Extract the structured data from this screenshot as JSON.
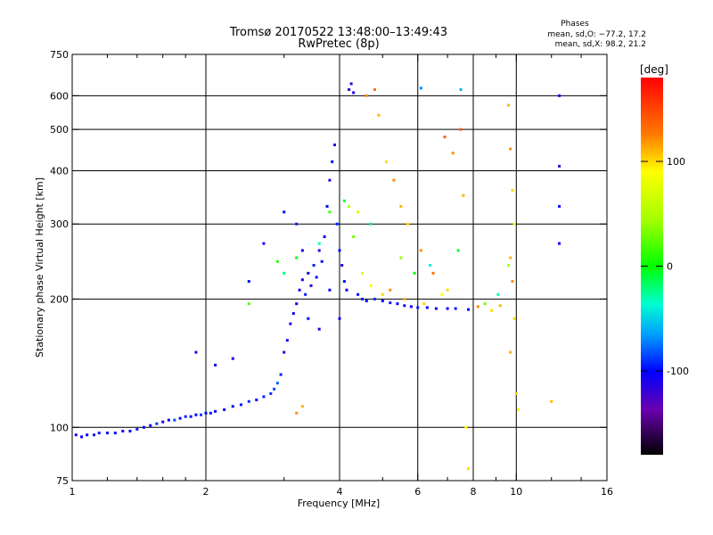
{
  "chart_data": {
    "type": "scatter",
    "title": "Tromsø 20170522 13:48:00–13:49:43",
    "subtitle": "RwPretec (8p)",
    "xlabel": "Frequency [MHz]",
    "ylabel": "Stationary phase Virtual Height [km]",
    "x_scale": "log",
    "y_scale": "log",
    "xlim": [
      1,
      16
    ],
    "ylim": [
      75,
      750
    ],
    "x_ticks": [
      1,
      2,
      4,
      6,
      8,
      10,
      16
    ],
    "x_minor_ticks": [
      1.2,
      1.4,
      1.6,
      1.8,
      3,
      5,
      7,
      9,
      12,
      14
    ],
    "y_ticks": [
      75,
      100,
      200,
      300,
      400,
      500,
      600,
      750
    ],
    "grid_x": [
      2,
      4,
      6,
      8,
      10
    ],
    "grid_y": [
      100,
      200,
      300,
      400,
      500,
      600
    ],
    "phases_legend": {
      "title": "Phases",
      "line_o": "mean, sd,O: −77.2, 17.2",
      "line_x": "mean, sd,X:  98.2, 21.2"
    },
    "colorbar": {
      "label": "[deg]",
      "range": [
        -180,
        180
      ],
      "ticks": [
        100,
        0,
        -100
      ]
    },
    "series": [
      {
        "points": [
          [
            1.02,
            96,
            -110
          ],
          [
            1.05,
            95,
            -105
          ],
          [
            1.08,
            96,
            -100
          ],
          [
            1.12,
            96,
            -110
          ],
          [
            1.15,
            97,
            -95
          ],
          [
            1.2,
            97,
            -105
          ],
          [
            1.25,
            97,
            -100
          ],
          [
            1.3,
            98,
            -110
          ],
          [
            1.35,
            98,
            -100
          ],
          [
            1.4,
            99,
            -95
          ],
          [
            1.45,
            100,
            -105
          ],
          [
            1.5,
            101,
            -100
          ],
          [
            1.55,
            102,
            -90
          ],
          [
            1.6,
            103,
            -110
          ],
          [
            1.65,
            104,
            -100
          ],
          [
            1.7,
            104,
            -85
          ],
          [
            1.75,
            105,
            -100
          ],
          [
            1.8,
            106,
            -95
          ],
          [
            1.85,
            106,
            -105
          ],
          [
            1.9,
            107,
            -100
          ],
          [
            1.95,
            107,
            -90
          ],
          [
            2.0,
            108,
            -100
          ],
          [
            2.05,
            108,
            -95
          ],
          [
            2.1,
            109,
            -100
          ],
          [
            2.2,
            110,
            -105
          ],
          [
            2.3,
            112,
            -100
          ],
          [
            2.4,
            113,
            -95
          ],
          [
            2.5,
            115,
            -90
          ],
          [
            2.6,
            116,
            -100
          ],
          [
            2.7,
            118,
            -95
          ],
          [
            2.8,
            120,
            -90
          ],
          [
            2.85,
            123,
            -85
          ],
          [
            2.9,
            127,
            -80
          ],
          [
            2.95,
            133,
            -95
          ],
          [
            3.0,
            150,
            -110
          ],
          [
            3.05,
            160,
            -100
          ],
          [
            3.1,
            175,
            -110
          ],
          [
            3.15,
            185,
            -105
          ],
          [
            3.2,
            195,
            -100
          ],
          [
            3.25,
            210,
            -110
          ],
          [
            3.3,
            222,
            -100
          ],
          [
            3.35,
            205,
            -95
          ],
          [
            3.4,
            230,
            -100
          ],
          [
            3.45,
            215,
            -110
          ],
          [
            3.5,
            240,
            -95
          ],
          [
            3.55,
            225,
            -100
          ],
          [
            3.6,
            260,
            -110
          ],
          [
            3.65,
            245,
            -100
          ],
          [
            3.7,
            280,
            -105
          ],
          [
            3.75,
            330,
            -100
          ],
          [
            3.8,
            380,
            -110
          ],
          [
            3.85,
            420,
            -100
          ],
          [
            3.9,
            460,
            -110
          ],
          [
            3.95,
            300,
            -95
          ],
          [
            4.0,
            260,
            -100
          ],
          [
            4.05,
            240,
            -110
          ],
          [
            4.1,
            220,
            -100
          ],
          [
            4.15,
            210,
            -105
          ],
          [
            4.2,
            620,
            -120
          ],
          [
            4.25,
            640,
            -115
          ],
          [
            4.3,
            610,
            -110
          ],
          [
            4.4,
            205,
            -100
          ],
          [
            4.5,
            200,
            -95
          ],
          [
            4.6,
            198,
            -100
          ],
          [
            4.8,
            200,
            -90
          ],
          [
            5.0,
            198,
            -100
          ],
          [
            5.2,
            196,
            -95
          ],
          [
            5.4,
            195,
            -100
          ],
          [
            5.6,
            193,
            -105
          ],
          [
            5.8,
            192,
            -100
          ],
          [
            6.0,
            191,
            -95
          ],
          [
            6.3,
            191,
            -100
          ],
          [
            6.6,
            190,
            -105
          ],
          [
            7.0,
            190,
            -100
          ],
          [
            7.3,
            190,
            -95
          ],
          [
            7.8,
            189,
            -100
          ],
          [
            1.9,
            150,
            -110
          ],
          [
            2.1,
            140,
            -100
          ],
          [
            2.3,
            145,
            -105
          ],
          [
            2.5,
            220,
            -100
          ],
          [
            2.7,
            270,
            -110
          ],
          [
            3.0,
            320,
            -100
          ],
          [
            3.2,
            300,
            -95
          ],
          [
            3.3,
            260,
            -105
          ],
          [
            3.4,
            180,
            -100
          ],
          [
            3.6,
            170,
            -110
          ],
          [
            3.8,
            210,
            -100
          ],
          [
            4.0,
            180,
            -105
          ],
          [
            12.5,
            600,
            -110
          ],
          [
            12.5,
            270,
            -105
          ],
          [
            12.5,
            330,
            -100
          ],
          [
            12.5,
            410,
            -120
          ]
        ]
      },
      {
        "points": [
          [
            3.2,
            108,
            120
          ],
          [
            3.3,
            112,
            110
          ],
          [
            4.6,
            600,
            120
          ],
          [
            4.8,
            620,
            130
          ],
          [
            4.9,
            540,
            110
          ],
          [
            5.1,
            420,
            100
          ],
          [
            5.3,
            380,
            120
          ],
          [
            5.5,
            330,
            110
          ],
          [
            5.7,
            300,
            100
          ],
          [
            6.1,
            260,
            120
          ],
          [
            6.5,
            230,
            130
          ],
          [
            7.0,
            210,
            100
          ],
          [
            7.5,
            500,
            140
          ],
          [
            7.6,
            350,
            110
          ],
          [
            7.7,
            100,
            90
          ],
          [
            7.8,
            80,
            100
          ],
          [
            9.6,
            570,
            110
          ],
          [
            9.7,
            450,
            120
          ],
          [
            9.8,
            360,
            100
          ],
          [
            9.9,
            300,
            90
          ],
          [
            9.7,
            250,
            110
          ],
          [
            9.8,
            220,
            120
          ],
          [
            9.9,
            180,
            100
          ],
          [
            9.7,
            150,
            110
          ],
          [
            10.0,
            120,
            100
          ],
          [
            10.1,
            110,
            90
          ],
          [
            12.0,
            115,
            110
          ],
          [
            4.5,
            230,
            80
          ],
          [
            4.7,
            215,
            90
          ],
          [
            5.0,
            205,
            100
          ],
          [
            5.2,
            210,
            120
          ],
          [
            5.6,
            200,
            110
          ],
          [
            6.2,
            195,
            100
          ],
          [
            6.8,
            205,
            90
          ],
          [
            8.2,
            192,
            120
          ],
          [
            8.8,
            188,
            100
          ],
          [
            9.2,
            193,
            110
          ],
          [
            4.2,
            330,
            60
          ],
          [
            4.4,
            320,
            70
          ],
          [
            6.9,
            480,
            140
          ],
          [
            7.2,
            440,
            120
          ]
        ]
      },
      {
        "points": [
          [
            2.5,
            195,
            20
          ],
          [
            2.9,
            245,
            10
          ],
          [
            3.0,
            230,
            -20
          ],
          [
            3.2,
            250,
            0
          ],
          [
            3.6,
            270,
            -30
          ],
          [
            3.8,
            320,
            15
          ],
          [
            4.1,
            340,
            -10
          ],
          [
            4.3,
            280,
            30
          ],
          [
            4.7,
            300,
            -20
          ],
          [
            5.5,
            250,
            40
          ],
          [
            5.9,
            230,
            0
          ],
          [
            6.4,
            240,
            -40
          ],
          [
            7.4,
            260,
            -10
          ],
          [
            8.5,
            195,
            30
          ],
          [
            9.1,
            205,
            -30
          ],
          [
            9.6,
            240,
            50
          ],
          [
            7.5,
            620,
            -60
          ],
          [
            6.1,
            625,
            -70
          ]
        ]
      }
    ]
  }
}
